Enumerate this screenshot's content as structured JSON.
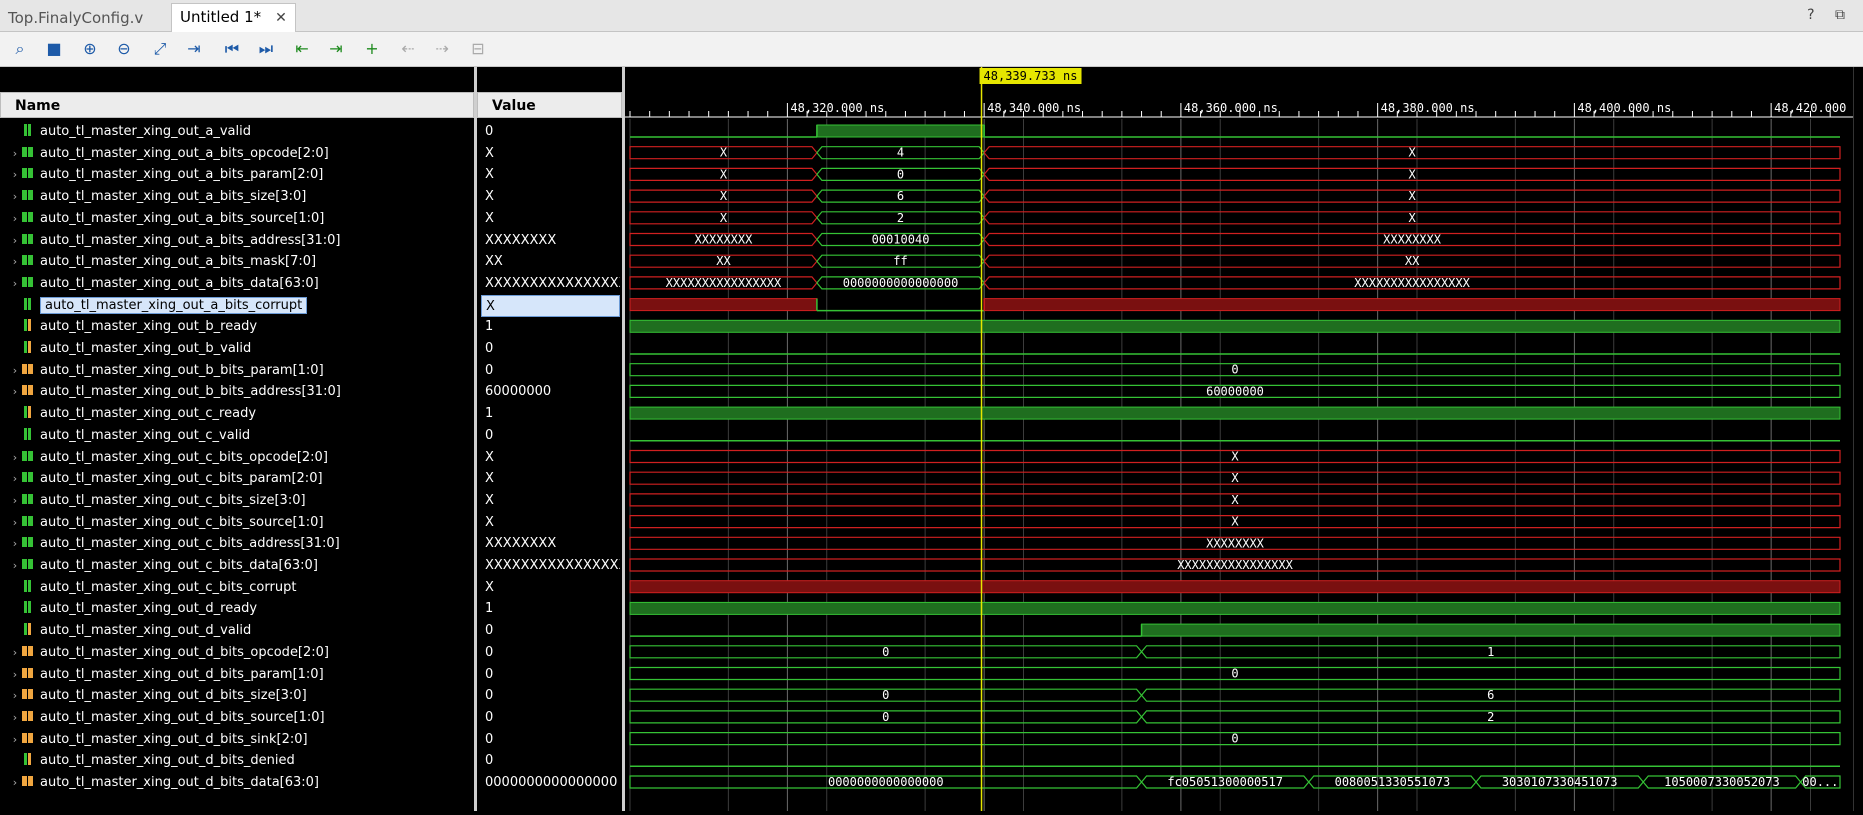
{
  "tabs": [
    {
      "label": "Top.FinalyConfig.v",
      "active": false
    },
    {
      "label": "Untitled 1*",
      "active": true
    }
  ],
  "window_controls": "? ⧉",
  "toolbar": [
    {
      "name": "search-icon",
      "glyph": "⌕",
      "enabled": true
    },
    {
      "name": "save-icon",
      "glyph": "■",
      "enabled": true
    },
    {
      "name": "zoom-in-icon",
      "glyph": "⊕",
      "enabled": true
    },
    {
      "name": "zoom-out-icon",
      "glyph": "⊖",
      "enabled": true
    },
    {
      "name": "zoom-fit-icon",
      "glyph": "⤢",
      "enabled": true
    },
    {
      "name": "go-to-cursor-icon",
      "glyph": "⇥",
      "enabled": true
    },
    {
      "name": "go-to-start-icon",
      "glyph": "⏮",
      "enabled": true
    },
    {
      "name": "go-to-end-icon",
      "glyph": "⏭",
      "enabled": true
    },
    {
      "name": "previous-transition-icon",
      "glyph": "⇤",
      "enabled": true
    },
    {
      "name": "next-transition-icon",
      "glyph": "⇥",
      "enabled": true
    },
    {
      "name": "add-marker-icon",
      "glyph": "+",
      "enabled": true
    },
    {
      "name": "previous-marker-icon",
      "glyph": "⇠",
      "enabled": false
    },
    {
      "name": "next-marker-icon",
      "glyph": "⇢",
      "enabled": false
    },
    {
      "name": "swap-cursors-icon",
      "glyph": "⊟",
      "enabled": false
    }
  ],
  "columns": {
    "name": "Name",
    "value": "Value"
  },
  "cursor_label": "48,339.733 ns",
  "time_axis": {
    "ticks": [
      {
        "t": 48320,
        "label": "48,320.000 ns"
      },
      {
        "t": 48340,
        "label": "48,340.000 ns"
      },
      {
        "t": 48360,
        "label": "48,360.000 ns"
      },
      {
        "t": 48380,
        "label": "48,380.000 ns"
      },
      {
        "t": 48400,
        "label": "48,400.000 ns"
      },
      {
        "t": 48420,
        "label": "48,420.000 ns"
      }
    ],
    "start": 48304,
    "end": 48427,
    "cursor": 48339.733
  },
  "signals": [
    {
      "name": "auto_tl_master_xing_out_a_valid",
      "value": "0",
      "kind": "bit",
      "icon": "green",
      "bus": false,
      "wave": [
        {
          "from": 48304,
          "to": 48323,
          "v": "0"
        },
        {
          "from": 48323,
          "to": 48340,
          "v": "1"
        },
        {
          "from": 48340,
          "to": 48427,
          "v": "0"
        }
      ]
    },
    {
      "name": "auto_tl_master_xing_out_a_bits_opcode[2:0]",
      "value": "X",
      "kind": "bus",
      "icon": "green",
      "bus": true,
      "wave": [
        {
          "from": 48304,
          "to": 48323,
          "v": "X"
        },
        {
          "from": 48323,
          "to": 48340,
          "v": "4"
        },
        {
          "from": 48340,
          "to": 48427,
          "v": "X"
        }
      ]
    },
    {
      "name": "auto_tl_master_xing_out_a_bits_param[2:0]",
      "value": "X",
      "kind": "bus",
      "icon": "green",
      "bus": true,
      "wave": [
        {
          "from": 48304,
          "to": 48323,
          "v": "X"
        },
        {
          "from": 48323,
          "to": 48340,
          "v": "0"
        },
        {
          "from": 48340,
          "to": 48427,
          "v": "X"
        }
      ]
    },
    {
      "name": "auto_tl_master_xing_out_a_bits_size[3:0]",
      "value": "X",
      "kind": "bus",
      "icon": "green",
      "bus": true,
      "wave": [
        {
          "from": 48304,
          "to": 48323,
          "v": "X"
        },
        {
          "from": 48323,
          "to": 48340,
          "v": "6"
        },
        {
          "from": 48340,
          "to": 48427,
          "v": "X"
        }
      ]
    },
    {
      "name": "auto_tl_master_xing_out_a_bits_source[1:0]",
      "value": "X",
      "kind": "bus",
      "icon": "green",
      "bus": true,
      "wave": [
        {
          "from": 48304,
          "to": 48323,
          "v": "X"
        },
        {
          "from": 48323,
          "to": 48340,
          "v": "2"
        },
        {
          "from": 48340,
          "to": 48427,
          "v": "X"
        }
      ]
    },
    {
      "name": "auto_tl_master_xing_out_a_bits_address[31:0]",
      "value": "XXXXXXXX",
      "kind": "bus",
      "icon": "green",
      "bus": true,
      "wave": [
        {
          "from": 48304,
          "to": 48323,
          "v": "XXXXXXXX"
        },
        {
          "from": 48323,
          "to": 48340,
          "v": "00010040"
        },
        {
          "from": 48340,
          "to": 48427,
          "v": "XXXXXXXX"
        }
      ]
    },
    {
      "name": "auto_tl_master_xing_out_a_bits_mask[7:0]",
      "value": "XX",
      "kind": "bus",
      "icon": "green",
      "bus": true,
      "wave": [
        {
          "from": 48304,
          "to": 48323,
          "v": "XX"
        },
        {
          "from": 48323,
          "to": 48340,
          "v": "ff"
        },
        {
          "from": 48340,
          "to": 48427,
          "v": "XX"
        }
      ]
    },
    {
      "name": "auto_tl_master_xing_out_a_bits_data[63:0]",
      "value": "XXXXXXXXXXXXXXXX",
      "kind": "bus",
      "icon": "green",
      "bus": true,
      "wave": [
        {
          "from": 48304,
          "to": 48323,
          "v": "XXXXXXXXXXXXXXXX"
        },
        {
          "from": 48323,
          "to": 48340,
          "v": "0000000000000000"
        },
        {
          "from": 48340,
          "to": 48427,
          "v": "XXXXXXXXXXXXXXXX"
        }
      ]
    },
    {
      "name": "auto_tl_master_xing_out_a_bits_corrupt",
      "value": "X",
      "kind": "bit",
      "icon": "green",
      "bus": false,
      "selected": true,
      "wave": [
        {
          "from": 48304,
          "to": 48323,
          "v": "X"
        },
        {
          "from": 48323,
          "to": 48340,
          "v": "0"
        },
        {
          "from": 48340,
          "to": 48427,
          "v": "X"
        }
      ]
    },
    {
      "name": "auto_tl_master_xing_out_b_ready",
      "value": "1",
      "kind": "bit",
      "icon": "orange",
      "bus": false,
      "wave": [
        {
          "from": 48304,
          "to": 48427,
          "v": "1"
        }
      ]
    },
    {
      "name": "auto_tl_master_xing_out_b_valid",
      "value": "0",
      "kind": "bit",
      "icon": "orange",
      "bus": false,
      "wave": [
        {
          "from": 48304,
          "to": 48427,
          "v": "0"
        }
      ]
    },
    {
      "name": "auto_tl_master_xing_out_b_bits_param[1:0]",
      "value": "0",
      "kind": "bus",
      "icon": "orange",
      "bus": true,
      "wave": [
        {
          "from": 48304,
          "to": 48427,
          "v": "0"
        }
      ]
    },
    {
      "name": "auto_tl_master_xing_out_b_bits_address[31:0]",
      "value": "60000000",
      "kind": "bus",
      "icon": "orange",
      "bus": true,
      "wave": [
        {
          "from": 48304,
          "to": 48427,
          "v": "60000000"
        }
      ]
    },
    {
      "name": "auto_tl_master_xing_out_c_ready",
      "value": "1",
      "kind": "bit",
      "icon": "orange",
      "bus": false,
      "wave": [
        {
          "from": 48304,
          "to": 48427,
          "v": "1"
        }
      ]
    },
    {
      "name": "auto_tl_master_xing_out_c_valid",
      "value": "0",
      "kind": "bit",
      "icon": "green",
      "bus": false,
      "wave": [
        {
          "from": 48304,
          "to": 48427,
          "v": "0"
        }
      ]
    },
    {
      "name": "auto_tl_master_xing_out_c_bits_opcode[2:0]",
      "value": "X",
      "kind": "bus",
      "icon": "green",
      "bus": true,
      "wave": [
        {
          "from": 48304,
          "to": 48427,
          "v": "X"
        }
      ]
    },
    {
      "name": "auto_tl_master_xing_out_c_bits_param[2:0]",
      "value": "X",
      "kind": "bus",
      "icon": "green",
      "bus": true,
      "wave": [
        {
          "from": 48304,
          "to": 48427,
          "v": "X"
        }
      ]
    },
    {
      "name": "auto_tl_master_xing_out_c_bits_size[3:0]",
      "value": "X",
      "kind": "bus",
      "icon": "green",
      "bus": true,
      "wave": [
        {
          "from": 48304,
          "to": 48427,
          "v": "X"
        }
      ]
    },
    {
      "name": "auto_tl_master_xing_out_c_bits_source[1:0]",
      "value": "X",
      "kind": "bus",
      "icon": "green",
      "bus": true,
      "wave": [
        {
          "from": 48304,
          "to": 48427,
          "v": "X"
        }
      ]
    },
    {
      "name": "auto_tl_master_xing_out_c_bits_address[31:0]",
      "value": "XXXXXXXX",
      "kind": "bus",
      "icon": "green",
      "bus": true,
      "wave": [
        {
          "from": 48304,
          "to": 48427,
          "v": "XXXXXXXX"
        }
      ]
    },
    {
      "name": "auto_tl_master_xing_out_c_bits_data[63:0]",
      "value": "XXXXXXXXXXXXXXXX",
      "kind": "bus",
      "icon": "green",
      "bus": true,
      "wave": [
        {
          "from": 48304,
          "to": 48427,
          "v": "XXXXXXXXXXXXXXXX"
        }
      ]
    },
    {
      "name": "auto_tl_master_xing_out_c_bits_corrupt",
      "value": "X",
      "kind": "bit",
      "icon": "green",
      "bus": false,
      "wave": [
        {
          "from": 48304,
          "to": 48427,
          "v": "X"
        }
      ]
    },
    {
      "name": "auto_tl_master_xing_out_d_ready",
      "value": "1",
      "kind": "bit",
      "icon": "green",
      "bus": false,
      "wave": [
        {
          "from": 48304,
          "to": 48427,
          "v": "1"
        }
      ]
    },
    {
      "name": "auto_tl_master_xing_out_d_valid",
      "value": "0",
      "kind": "bit",
      "icon": "orange",
      "bus": false,
      "wave": [
        {
          "from": 48304,
          "to": 48356,
          "v": "0"
        },
        {
          "from": 48356,
          "to": 48427,
          "v": "1"
        }
      ]
    },
    {
      "name": "auto_tl_master_xing_out_d_bits_opcode[2:0]",
      "value": "0",
      "kind": "bus",
      "icon": "orange",
      "bus": true,
      "wave": [
        {
          "from": 48304,
          "to": 48356,
          "v": "0"
        },
        {
          "from": 48356,
          "to": 48427,
          "v": "1"
        }
      ]
    },
    {
      "name": "auto_tl_master_xing_out_d_bits_param[1:0]",
      "value": "0",
      "kind": "bus",
      "icon": "orange",
      "bus": true,
      "wave": [
        {
          "from": 48304,
          "to": 48427,
          "v": "0"
        }
      ]
    },
    {
      "name": "auto_tl_master_xing_out_d_bits_size[3:0]",
      "value": "0",
      "kind": "bus",
      "icon": "orange",
      "bus": true,
      "wave": [
        {
          "from": 48304,
          "to": 48356,
          "v": "0"
        },
        {
          "from": 48356,
          "to": 48427,
          "v": "6"
        }
      ]
    },
    {
      "name": "auto_tl_master_xing_out_d_bits_source[1:0]",
      "value": "0",
      "kind": "bus",
      "icon": "orange",
      "bus": true,
      "wave": [
        {
          "from": 48304,
          "to": 48356,
          "v": "0"
        },
        {
          "from": 48356,
          "to": 48427,
          "v": "2"
        }
      ]
    },
    {
      "name": "auto_tl_master_xing_out_d_bits_sink[2:0]",
      "value": "0",
      "kind": "bus",
      "icon": "orange",
      "bus": true,
      "wave": [
        {
          "from": 48304,
          "to": 48427,
          "v": "0"
        }
      ]
    },
    {
      "name": "auto_tl_master_xing_out_d_bits_denied",
      "value": "0",
      "kind": "bit",
      "icon": "orange",
      "bus": false,
      "wave": [
        {
          "from": 48304,
          "to": 48427,
          "v": "0"
        }
      ]
    },
    {
      "name": "auto_tl_master_xing_out_d_bits_data[63:0]",
      "value": "0000000000000000",
      "kind": "bus",
      "icon": "orange",
      "bus": true,
      "wave": [
        {
          "from": 48304,
          "to": 48356,
          "v": "0000000000000000"
        },
        {
          "from": 48356,
          "to": 48373,
          "v": "fc05051300000517"
        },
        {
          "from": 48373,
          "to": 48390,
          "v": "0080051330551073"
        },
        {
          "from": 48390,
          "to": 48407,
          "v": "3030107330451073"
        },
        {
          "from": 48407,
          "to": 48423,
          "v": "1050007330052073"
        },
        {
          "from": 48423,
          "to": 48427,
          "v": "00..."
        }
      ]
    }
  ],
  "colors": {
    "wave_green": "#35c235",
    "wave_red": "#d02020",
    "cursor": "#e6e600",
    "selection": "#d6e6fa"
  }
}
